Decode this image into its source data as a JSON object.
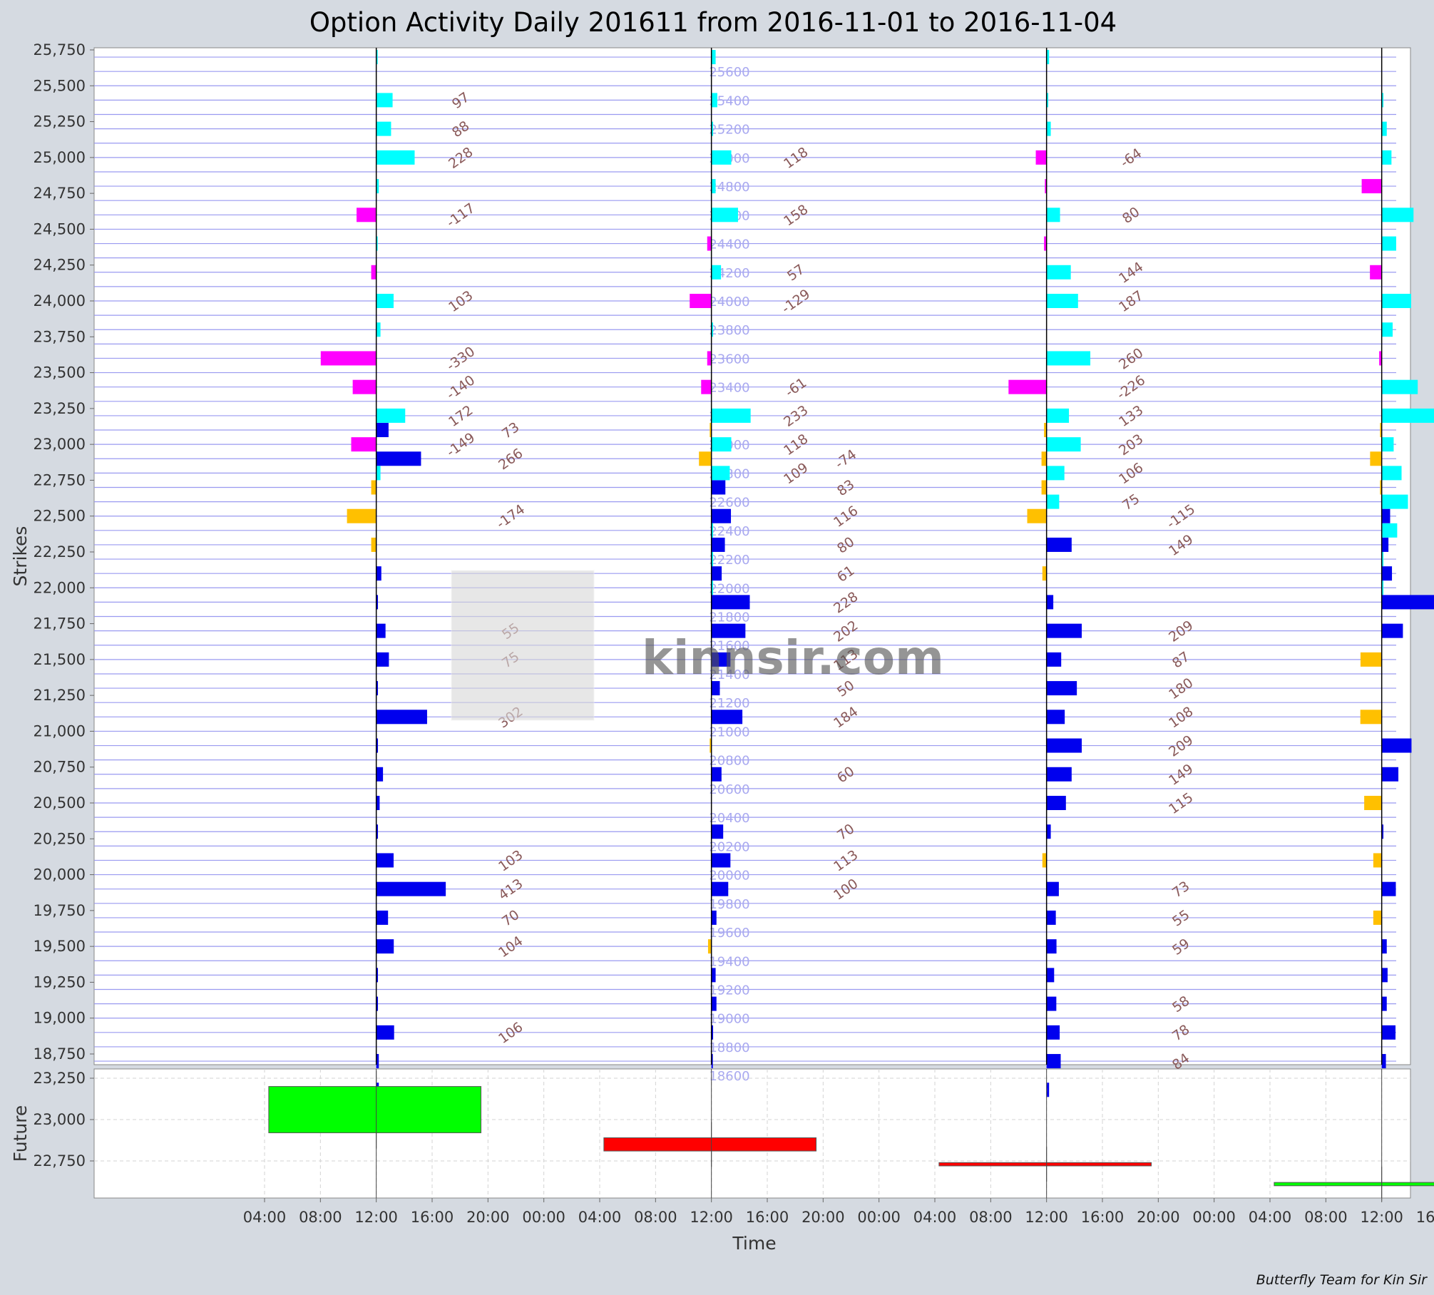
{
  "title": "Option Activity Daily 201611 from  2016-11-01 to 2016-11-04",
  "credit": "Butterfly Team for Kin Sir",
  "watermark": "kinnsir.com",
  "colors": {
    "call_pos": "#00ffff",
    "call_neg": "#ff00ff",
    "put_pos": "#0000ee",
    "put_neg": "#ffc000",
    "future_up": "#00ff00",
    "future_down": "#ff0000",
    "grid": "#9a9af0",
    "midtick": "#a9a9f0",
    "label": "#8a5a5a"
  },
  "chart_data": [
    {
      "type": "bar",
      "name": "options",
      "ylabel": "Strikes",
      "ylim": [
        18600,
        25800
      ],
      "ytick_labels": [
        "25,750",
        "25,500",
        "25,250",
        "25,000",
        "24,750",
        "24,500",
        "24,250",
        "24,000",
        "23,750",
        "23,500",
        "23,250",
        "23,000",
        "22,750",
        "22,500",
        "22,250",
        "22,000",
        "21,750",
        "21,500",
        "21,250",
        "21,000",
        "20,750",
        "20,500",
        "20,250",
        "20,000",
        "19,750",
        "19,500",
        "19,250",
        "19,000",
        "18,750"
      ],
      "ytick_values": [
        25750,
        25500,
        25250,
        25000,
        24750,
        24500,
        24250,
        24000,
        23750,
        23500,
        23250,
        23000,
        22750,
        22500,
        22250,
        22000,
        21750,
        21500,
        21250,
        21000,
        20750,
        20500,
        20250,
        20000,
        19750,
        19500,
        19250,
        19000,
        18750
      ],
      "mid_strike_labels": [
        "25600",
        "25400",
        "25200",
        "25000",
        "24800",
        "24600",
        "24400",
        "24200",
        "24000",
        "23800",
        "23600",
        "23400",
        "23200",
        "23000",
        "22800",
        "22600",
        "22400",
        "22200",
        "22000",
        "21800",
        "21600",
        "21400",
        "21200",
        "21000",
        "20800",
        "20600",
        "20400",
        "20200",
        "20000",
        "19800",
        "19600",
        "19400",
        "19200",
        "19000",
        "18800",
        "18600"
      ],
      "days": [
        {
          "date": "2016-11-01",
          "calls": [
            {
              "strike": 25700,
              "value": 5
            },
            {
              "strike": 25400,
              "value": 97
            },
            {
              "strike": 25200,
              "value": 88
            },
            {
              "strike": 25000,
              "value": 228
            },
            {
              "strike": 24800,
              "value": 15
            },
            {
              "strike": 24600,
              "value": -117
            },
            {
              "strike": 24400,
              "value": 5
            },
            {
              "strike": 24200,
              "value": -30
            },
            {
              "strike": 24000,
              "value": 103
            },
            {
              "strike": 23800,
              "value": 25
            },
            {
              "strike": 23600,
              "value": -330
            },
            {
              "strike": 23400,
              "value": -140
            },
            {
              "strike": 23200,
              "value": 172
            },
            {
              "strike": 23000,
              "value": -149
            },
            {
              "strike": 22800,
              "value": 25
            }
          ],
          "puts": [
            {
              "strike": 23100,
              "value": 73
            },
            {
              "strike": 22900,
              "value": 266
            },
            {
              "strike": 22700,
              "value": -30
            },
            {
              "strike": 22500,
              "value": -174
            },
            {
              "strike": 22300,
              "value": -30
            },
            {
              "strike": 22100,
              "value": 30
            },
            {
              "strike": 21900,
              "value": 10
            },
            {
              "strike": 21700,
              "value": 55
            },
            {
              "strike": 21500,
              "value": 75
            },
            {
              "strike": 21300,
              "value": 10
            },
            {
              "strike": 21100,
              "value": 302
            },
            {
              "strike": 20900,
              "value": 10
            },
            {
              "strike": 20700,
              "value": 40
            },
            {
              "strike": 20500,
              "value": 20
            },
            {
              "strike": 20300,
              "value": 10
            },
            {
              "strike": 20100,
              "value": 103
            },
            {
              "strike": 19900,
              "value": 413
            },
            {
              "strike": 19700,
              "value": 70
            },
            {
              "strike": 19500,
              "value": 104
            },
            {
              "strike": 19300,
              "value": 10
            },
            {
              "strike": 19100,
              "value": 10
            },
            {
              "strike": 18900,
              "value": 106
            },
            {
              "strike": 18700,
              "value": 15
            },
            {
              "strike": 18500,
              "value": 15
            }
          ]
        },
        {
          "date": "2016-11-02",
          "calls": [
            {
              "strike": 25700,
              "value": 25
            },
            {
              "strike": 25400,
              "value": 35
            },
            {
              "strike": 25200,
              "value": 10
            },
            {
              "strike": 25000,
              "value": 118
            },
            {
              "strike": 24800,
              "value": 25
            },
            {
              "strike": 24600,
              "value": 158
            },
            {
              "strike": 24400,
              "value": -25
            },
            {
              "strike": 24200,
              "value": 57
            },
            {
              "strike": 24000,
              "value": -129
            },
            {
              "strike": 23800,
              "value": 10
            },
            {
              "strike": 23600,
              "value": -25
            },
            {
              "strike": 23400,
              "value": -61
            },
            {
              "strike": 23200,
              "value": 233
            },
            {
              "strike": 23000,
              "value": 118
            },
            {
              "strike": 22800,
              "value": 109
            },
            {
              "strike": 22400,
              "value": 10
            },
            {
              "strike": 22200,
              "value": 10
            },
            {
              "strike": 22000,
              "value": 10
            }
          ],
          "puts": [
            {
              "strike": 23100,
              "value": -10
            },
            {
              "strike": 22900,
              "value": -74
            },
            {
              "strike": 22700,
              "value": 83
            },
            {
              "strike": 22500,
              "value": 116
            },
            {
              "strike": 22300,
              "value": 80
            },
            {
              "strike": 22100,
              "value": 61
            },
            {
              "strike": 21900,
              "value": 228
            },
            {
              "strike": 21700,
              "value": 202
            },
            {
              "strike": 21500,
              "value": 113
            },
            {
              "strike": 21300,
              "value": 50
            },
            {
              "strike": 21100,
              "value": 184
            },
            {
              "strike": 20900,
              "value": -10
            },
            {
              "strike": 20700,
              "value": 60
            },
            {
              "strike": 20300,
              "value": 70
            },
            {
              "strike": 20100,
              "value": 113
            },
            {
              "strike": 19900,
              "value": 100
            },
            {
              "strike": 19700,
              "value": 30
            },
            {
              "strike": 19500,
              "value": -20
            },
            {
              "strike": 19300,
              "value": 25
            },
            {
              "strike": 19100,
              "value": 30
            },
            {
              "strike": 18900,
              "value": 10
            },
            {
              "strike": 18700,
              "value": 5
            }
          ]
        },
        {
          "date": "2016-11-03",
          "calls": [
            {
              "strike": 25700,
              "value": 15
            },
            {
              "strike": 25400,
              "value": 10
            },
            {
              "strike": 25200,
              "value": 25
            },
            {
              "strike": 25000,
              "value": -64
            },
            {
              "strike": 24800,
              "value": -10
            },
            {
              "strike": 24600,
              "value": 80
            },
            {
              "strike": 24400,
              "value": -15
            },
            {
              "strike": 24200,
              "value": 144
            },
            {
              "strike": 24000,
              "value": 187
            },
            {
              "strike": 23600,
              "value": 260
            },
            {
              "strike": 23400,
              "value": -226
            },
            {
              "strike": 23200,
              "value": 133
            },
            {
              "strike": 23000,
              "value": 203
            },
            {
              "strike": 22800,
              "value": 106
            },
            {
              "strike": 22600,
              "value": 75
            },
            {
              "strike": 22300,
              "value": 10
            }
          ],
          "puts": [
            {
              "strike": 23100,
              "value": -15
            },
            {
              "strike": 22900,
              "value": -30
            },
            {
              "strike": 22700,
              "value": -30
            },
            {
              "strike": 22500,
              "value": -115
            },
            {
              "strike": 22300,
              "value": 149
            },
            {
              "strike": 22100,
              "value": -25
            },
            {
              "strike": 21900,
              "value": 40
            },
            {
              "strike": 21700,
              "value": 209
            },
            {
              "strike": 21500,
              "value": 87
            },
            {
              "strike": 21300,
              "value": 180
            },
            {
              "strike": 21100,
              "value": 108
            },
            {
              "strike": 20900,
              "value": 209
            },
            {
              "strike": 20700,
              "value": 149
            },
            {
              "strike": 20500,
              "value": 115
            },
            {
              "strike": 20300,
              "value": 25
            },
            {
              "strike": 20100,
              "value": -25
            },
            {
              "strike": 19900,
              "value": 73
            },
            {
              "strike": 19700,
              "value": 55
            },
            {
              "strike": 19500,
              "value": 59
            },
            {
              "strike": 19300,
              "value": 45
            },
            {
              "strike": 19100,
              "value": 58
            },
            {
              "strike": 18900,
              "value": 78
            },
            {
              "strike": 18700,
              "value": 84
            },
            {
              "strike": 18500,
              "value": 15
            }
          ]
        },
        {
          "date": "2016-11-04",
          "calls": [
            {
              "strike": 25400,
              "value": 10
            },
            {
              "strike": 25200,
              "value": 30
            },
            {
              "strike": 25000,
              "value": 58
            },
            {
              "strike": 24800,
              "value": -119
            },
            {
              "strike": 24600,
              "value": 189
            },
            {
              "strike": 24400,
              "value": 86
            },
            {
              "strike": 24200,
              "value": -70
            },
            {
              "strike": 24000,
              "value": 175
            },
            {
              "strike": 23800,
              "value": 65
            },
            {
              "strike": 23600,
              "value": -15
            },
            {
              "strike": 23400,
              "value": 214
            },
            {
              "strike": 23200,
              "value": 320
            },
            {
              "strike": 23000,
              "value": 71
            },
            {
              "strike": 22800,
              "value": 118
            },
            {
              "strike": 22600,
              "value": 156
            },
            {
              "strike": 22400,
              "value": 92
            },
            {
              "strike": 22200,
              "value": 10
            },
            {
              "strike": 22000,
              "value": 10
            }
          ],
          "puts": [
            {
              "strike": 23100,
              "value": -10
            },
            {
              "strike": 22900,
              "value": -69
            },
            {
              "strike": 22700,
              "value": -10
            },
            {
              "strike": 22500,
              "value": 50
            },
            {
              "strike": 22300,
              "value": 40
            },
            {
              "strike": 22100,
              "value": 61
            },
            {
              "strike": 21900,
              "value": 1041
            },
            {
              "strike": 21700,
              "value": 126
            },
            {
              "strike": 21500,
              "value": -126
            },
            {
              "strike": 21100,
              "value": -127
            },
            {
              "strike": 20900,
              "value": 177
            },
            {
              "strike": 20700,
              "value": 99
            },
            {
              "strike": 20500,
              "value": -104
            },
            {
              "strike": 20300,
              "value": 10
            },
            {
              "strike": 20100,
              "value": -50
            },
            {
              "strike": 19900,
              "value": 84
            },
            {
              "strike": 19700,
              "value": -50
            },
            {
              "strike": 19500,
              "value": 30
            },
            {
              "strike": 19300,
              "value": 35
            },
            {
              "strike": 19100,
              "value": 30
            },
            {
              "strike": 18900,
              "value": 82
            },
            {
              "strike": 18700,
              "value": 25
            }
          ]
        }
      ]
    },
    {
      "type": "bar",
      "name": "future",
      "ylabel": "Future",
      "xlabel": "Time",
      "ylim": [
        22580,
        23290
      ],
      "ytick_labels": [
        "23,250",
        "23,000",
        "22,750"
      ],
      "ytick_values": [
        23250,
        23000,
        22750
      ],
      "xtick_labels": [
        "04:00",
        "08:00",
        "12:00",
        "16:00",
        "20:00",
        "00:00",
        "04:00",
        "08:00",
        "12:00",
        "16:00",
        "20:00",
        "00:00",
        "04:00",
        "08:00",
        "12:00",
        "16:00",
        "20:00",
        "00:00",
        "04:00",
        "08:00",
        "12:00",
        "16:00",
        "20:00",
        "00:00"
      ],
      "candles": [
        {
          "date": "2016-11-01",
          "open": 22920,
          "close": 23200,
          "direction": "up"
        },
        {
          "date": "2016-11-02",
          "open": 22890,
          "close": 22810,
          "direction": "down"
        },
        {
          "date": "2016-11-03",
          "open": 22740,
          "close": 22720,
          "direction": "down"
        },
        {
          "date": "2016-11-04",
          "open": 22600,
          "close": 22620,
          "direction": "up"
        }
      ]
    }
  ]
}
